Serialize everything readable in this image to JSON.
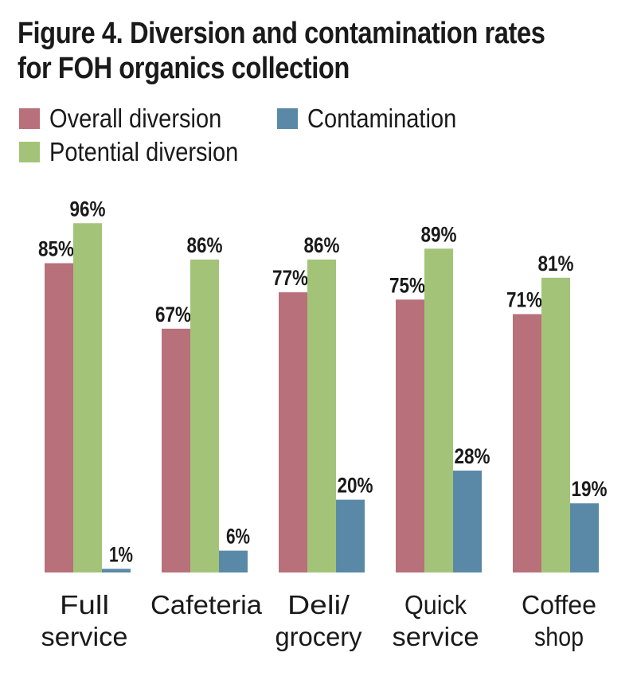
{
  "title_line1": "Figure 4. Diversion and contamination rates",
  "title_line2": "for FOH organics collection",
  "legend": [
    {
      "label": "Overall diversion",
      "color": "#b8707a"
    },
    {
      "label": "Contamination",
      "color": "#5a89a8"
    },
    {
      "label": "Potential diversion",
      "color": "#a3c478"
    }
  ],
  "chart_data": {
    "type": "bar",
    "title": "Figure 4. Diversion and contamination rates for FOH organics collection",
    "categories": [
      [
        "Full",
        "service"
      ],
      [
        "Cafeteria"
      ],
      [
        "Deli/",
        "grocery"
      ],
      [
        "Quick",
        "service"
      ],
      [
        "Coffee",
        "shop"
      ]
    ],
    "series": [
      {
        "name": "Overall diversion",
        "color": "#b8707a",
        "values": [
          85,
          67,
          77,
          75,
          71
        ]
      },
      {
        "name": "Potential diversion",
        "color": "#a3c478",
        "values": [
          96,
          86,
          86,
          89,
          81
        ]
      },
      {
        "name": "Contamination",
        "color": "#5a89a8",
        "values": [
          1,
          6,
          20,
          28,
          19
        ]
      }
    ],
    "value_suffix": "%",
    "ylim": [
      0,
      100
    ],
    "grid": false,
    "legend_position": "top"
  }
}
